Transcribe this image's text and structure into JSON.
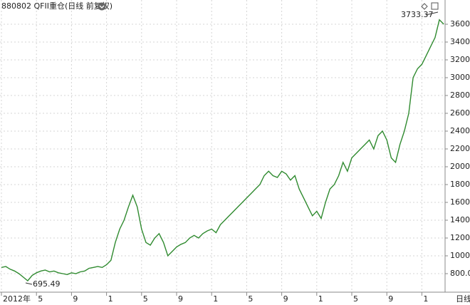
{
  "chart_data": {
    "type": "line",
    "title": "880802 QFII重仓(日线 前复权)",
    "period_label": "日线",
    "annotations": [
      "3733.37",
      "695.49"
    ],
    "categories": [
      "2012年",
      null,
      null,
      null,
      null,
      null,
      null,
      null,
      "5",
      null,
      null,
      null,
      null,
      null,
      null,
      null,
      "9",
      null,
      null,
      null,
      null,
      null,
      null,
      null,
      "1",
      null,
      null,
      null,
      null,
      null,
      null,
      null,
      "5",
      null,
      null,
      null,
      null,
      null,
      null,
      null,
      "9",
      null,
      null,
      null,
      null,
      null,
      null,
      null,
      "1",
      null,
      null,
      null,
      null,
      null,
      null,
      null,
      "5",
      null,
      null,
      null,
      null,
      null,
      null,
      null,
      "9",
      null,
      null,
      null,
      null,
      null,
      null,
      null,
      "1",
      null,
      null,
      null,
      null,
      null,
      null,
      null,
      "5",
      null,
      null,
      null,
      null,
      null,
      null,
      null,
      "9",
      null,
      null,
      null,
      null,
      null,
      null,
      null,
      "1",
      null,
      null,
      null,
      null,
      null
    ],
    "series": [
      {
        "name": "880802",
        "color": "#2f8a2f",
        "values": [
          870,
          880,
          850,
          830,
          800,
          760,
          720,
          780,
          810,
          830,
          840,
          820,
          830,
          810,
          800,
          790,
          810,
          800,
          820,
          830,
          860,
          870,
          880,
          870,
          900,
          950,
          1150,
          1300,
          1400,
          1550,
          1680,
          1550,
          1300,
          1150,
          1120,
          1200,
          1250,
          1150,
          1000,
          1050,
          1100,
          1130,
          1150,
          1200,
          1230,
          1200,
          1250,
          1280,
          1300,
          1260,
          1350,
          1400,
          1450,
          1500,
          1550,
          1600,
          1650,
          1700,
          1750,
          1800,
          1900,
          1950,
          1900,
          1880,
          1950,
          1920,
          1850,
          1900,
          1750,
          1650,
          1550,
          1450,
          1500,
          1420,
          1600,
          1750,
          1800,
          1900,
          2050,
          1950,
          2100,
          2150,
          2200,
          2250,
          2300,
          2200,
          2350,
          2400,
          2300,
          2100,
          2050,
          2250,
          2400,
          2600,
          3000,
          3100,
          3150,
          3250,
          3350,
          3450,
          3650,
          3600
        ]
      }
    ],
    "ylim": [
      600,
      3800
    ],
    "yticks": [
      {
        "value": 800,
        "label": "800.0"
      },
      1000,
      1200,
      1400,
      1600,
      1800,
      2000,
      2200,
      2400,
      2600,
      2800,
      3000,
      3200,
      3400,
      3600
    ],
    "grid": true
  }
}
